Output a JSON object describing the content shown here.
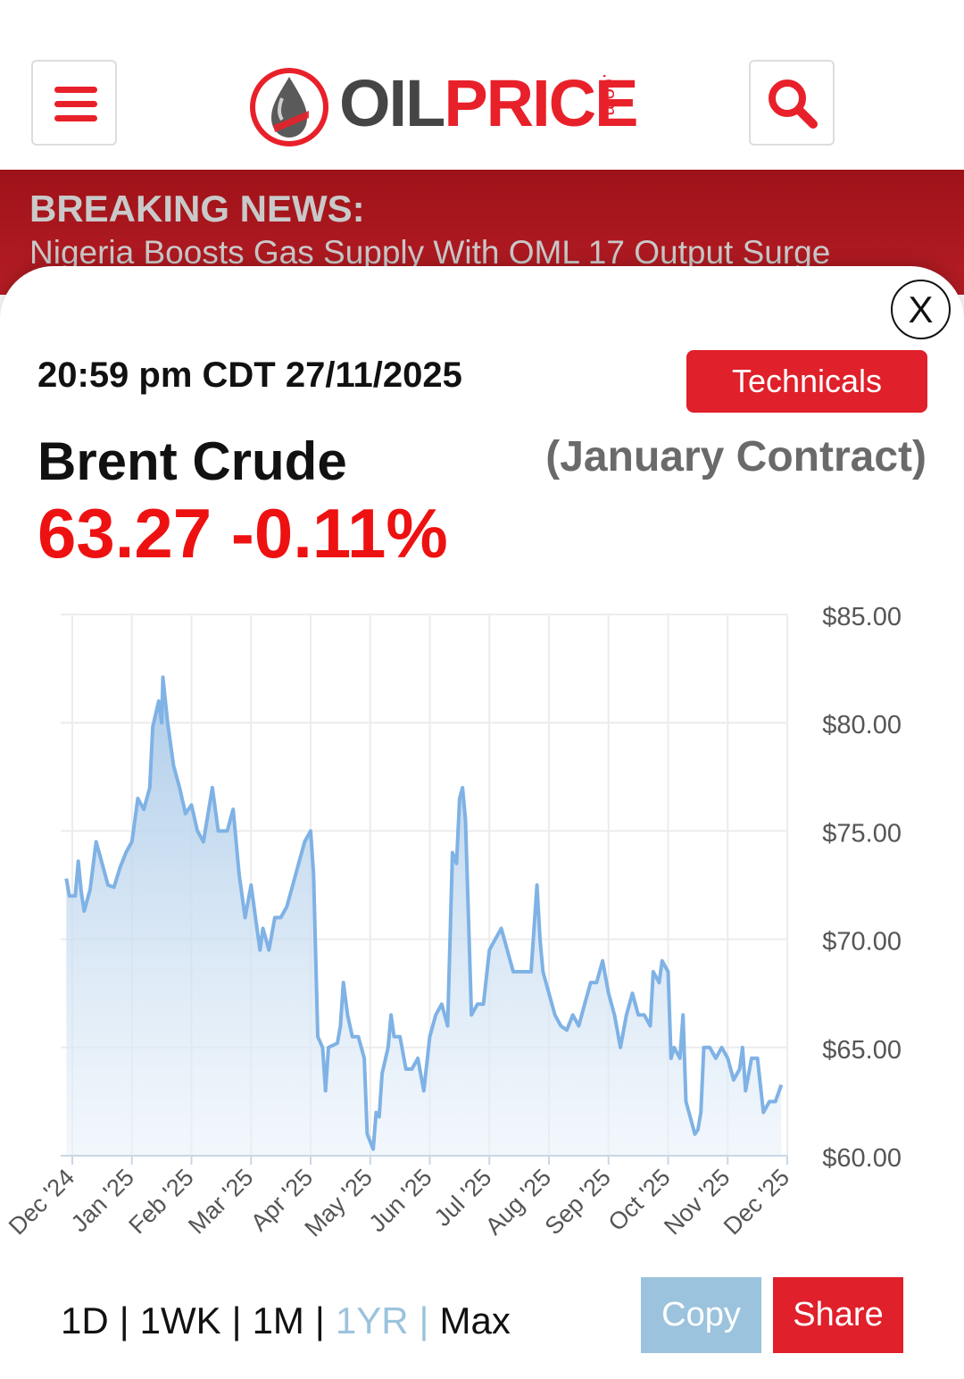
{
  "header": {
    "menu_icon": "hamburger-menu-icon",
    "logo_oil": "OIL",
    "logo_price": "PRICE",
    "logo_com": ".com",
    "search_icon": "search-icon"
  },
  "breaking": {
    "label": "BREAKING NEWS:",
    "headline": "Nigeria Boosts Gas Supply With OML 17 Output Surge"
  },
  "panel": {
    "close_label": "X",
    "timestamp": "20:59 pm CDT 27/11/2025",
    "technicals_label": "Technicals",
    "commodity": "Brent Crude",
    "contract": "(January Contract)",
    "price_change": "63.27 -0.11%"
  },
  "colors": {
    "brand_red": "#e0202a",
    "line": "#7fb2e5",
    "price_red": "#ee1111",
    "active_range": "#9cc3dd"
  },
  "chart_data": {
    "type": "area",
    "ylim": [
      60,
      85
    ],
    "y_ticks": [
      "$60.00",
      "$65.00",
      "$70.00",
      "$75.00",
      "$80.00",
      "$85.00"
    ],
    "y_tick_values": [
      60,
      65,
      70,
      75,
      80,
      85
    ],
    "x_ticks": [
      "Dec '24",
      "Jan '25",
      "Feb '25",
      "Mar '25",
      "Apr '25",
      "May '25",
      "Jun '25",
      "Jul '25",
      "Aug '25",
      "Sep '25",
      "Oct '25",
      "Nov '25",
      "Dec '25"
    ],
    "x_tick_values": [
      0,
      1,
      2,
      3,
      4,
      5,
      6,
      7,
      8,
      9,
      10,
      11,
      12
    ],
    "x_unit": "months since Dec 2024",
    "series": [
      {
        "points": [
          [
            -0.1,
            72.8
          ],
          [
            -0.05,
            72.0
          ],
          [
            0.05,
            72.0
          ],
          [
            0.1,
            73.6
          ],
          [
            0.15,
            72.2
          ],
          [
            0.2,
            71.3
          ],
          [
            0.3,
            72.3
          ],
          [
            0.4,
            74.5
          ],
          [
            0.5,
            73.5
          ],
          [
            0.6,
            72.5
          ],
          [
            0.7,
            72.4
          ],
          [
            0.8,
            73.3
          ],
          [
            0.9,
            74.0
          ],
          [
            1.0,
            74.5
          ],
          [
            1.1,
            76.5
          ],
          [
            1.2,
            76.0
          ],
          [
            1.3,
            77.0
          ],
          [
            1.35,
            79.8
          ],
          [
            1.45,
            81.0
          ],
          [
            1.5,
            80.0
          ],
          [
            1.52,
            82.1
          ],
          [
            1.6,
            80.0
          ],
          [
            1.7,
            78.0
          ],
          [
            1.8,
            77.0
          ],
          [
            1.9,
            75.8
          ],
          [
            2.0,
            76.2
          ],
          [
            2.1,
            75.0
          ],
          [
            2.2,
            74.5
          ],
          [
            2.35,
            77.0
          ],
          [
            2.45,
            75.0
          ],
          [
            2.6,
            75.0
          ],
          [
            2.7,
            76.0
          ],
          [
            2.8,
            73.0
          ],
          [
            2.9,
            71.0
          ],
          [
            3.0,
            72.5
          ],
          [
            3.1,
            70.5
          ],
          [
            3.15,
            69.5
          ],
          [
            3.2,
            70.5
          ],
          [
            3.3,
            69.5
          ],
          [
            3.4,
            71.0
          ],
          [
            3.5,
            71.0
          ],
          [
            3.6,
            71.5
          ],
          [
            3.7,
            72.5
          ],
          [
            3.8,
            73.5
          ],
          [
            3.9,
            74.5
          ],
          [
            4.0,
            75.0
          ],
          [
            4.05,
            73.0
          ],
          [
            4.12,
            65.5
          ],
          [
            4.2,
            65.0
          ],
          [
            4.25,
            63.0
          ],
          [
            4.3,
            65.0
          ],
          [
            4.45,
            65.2
          ],
          [
            4.5,
            66.0
          ],
          [
            4.55,
            68.0
          ],
          [
            4.62,
            66.5
          ],
          [
            4.7,
            65.5
          ],
          [
            4.8,
            65.5
          ],
          [
            4.9,
            64.5
          ],
          [
            4.95,
            61.0
          ],
          [
            5.05,
            60.3
          ],
          [
            5.1,
            62.0
          ],
          [
            5.15,
            61.8
          ],
          [
            5.2,
            63.8
          ],
          [
            5.3,
            65.0
          ],
          [
            5.35,
            66.5
          ],
          [
            5.4,
            65.5
          ],
          [
            5.5,
            65.5
          ],
          [
            5.6,
            64.0
          ],
          [
            5.7,
            64.0
          ],
          [
            5.8,
            64.5
          ],
          [
            5.9,
            63.0
          ],
          [
            6.0,
            65.5
          ],
          [
            6.1,
            66.5
          ],
          [
            6.2,
            67.0
          ],
          [
            6.3,
            66.0
          ],
          [
            6.38,
            74.0
          ],
          [
            6.45,
            73.5
          ],
          [
            6.5,
            76.5
          ],
          [
            6.55,
            77.0
          ],
          [
            6.6,
            75.5
          ],
          [
            6.7,
            66.5
          ],
          [
            6.8,
            67.0
          ],
          [
            6.9,
            67.0
          ],
          [
            7.0,
            69.5
          ],
          [
            7.1,
            70.0
          ],
          [
            7.2,
            70.5
          ],
          [
            7.3,
            69.5
          ],
          [
            7.4,
            68.5
          ],
          [
            7.5,
            68.5
          ],
          [
            7.6,
            68.5
          ],
          [
            7.7,
            68.5
          ],
          [
            7.8,
            72.5
          ],
          [
            7.85,
            70.0
          ],
          [
            7.9,
            68.5
          ],
          [
            8.0,
            67.5
          ],
          [
            8.1,
            66.5
          ],
          [
            8.2,
            66.0
          ],
          [
            8.3,
            65.8
          ],
          [
            8.4,
            66.5
          ],
          [
            8.5,
            66.0
          ],
          [
            8.6,
            67.0
          ],
          [
            8.7,
            68.0
          ],
          [
            8.8,
            68.0
          ],
          [
            8.9,
            69.0
          ],
          [
            9.0,
            67.5
          ],
          [
            9.1,
            66.5
          ],
          [
            9.2,
            65.0
          ],
          [
            9.3,
            66.5
          ],
          [
            9.4,
            67.5
          ],
          [
            9.5,
            66.5
          ],
          [
            9.6,
            66.5
          ],
          [
            9.7,
            66.0
          ],
          [
            9.75,
            68.5
          ],
          [
            9.85,
            68.0
          ],
          [
            9.9,
            69.0
          ],
          [
            10.0,
            68.5
          ],
          [
            10.05,
            64.5
          ],
          [
            10.1,
            65.0
          ],
          [
            10.2,
            64.5
          ],
          [
            10.25,
            66.5
          ],
          [
            10.3,
            62.5
          ],
          [
            10.4,
            61.5
          ],
          [
            10.45,
            61.0
          ],
          [
            10.5,
            61.2
          ],
          [
            10.55,
            62.0
          ],
          [
            10.6,
            65.0
          ],
          [
            10.7,
            65.0
          ],
          [
            10.8,
            64.5
          ],
          [
            10.9,
            65.0
          ],
          [
            11.0,
            64.5
          ],
          [
            11.1,
            63.5
          ],
          [
            11.2,
            64.0
          ],
          [
            11.25,
            65.0
          ],
          [
            11.3,
            63.0
          ],
          [
            11.4,
            64.5
          ],
          [
            11.5,
            64.5
          ],
          [
            11.6,
            62.0
          ],
          [
            11.7,
            62.5
          ],
          [
            11.8,
            62.5
          ],
          [
            11.9,
            63.27
          ]
        ]
      }
    ]
  },
  "ranges": {
    "d1": "1D",
    "wk1": "1WK",
    "m1": "1M",
    "yr1": "1YR",
    "max": "Max",
    "sep": "|"
  },
  "buttons": {
    "copy": "Copy",
    "share": "Share"
  }
}
